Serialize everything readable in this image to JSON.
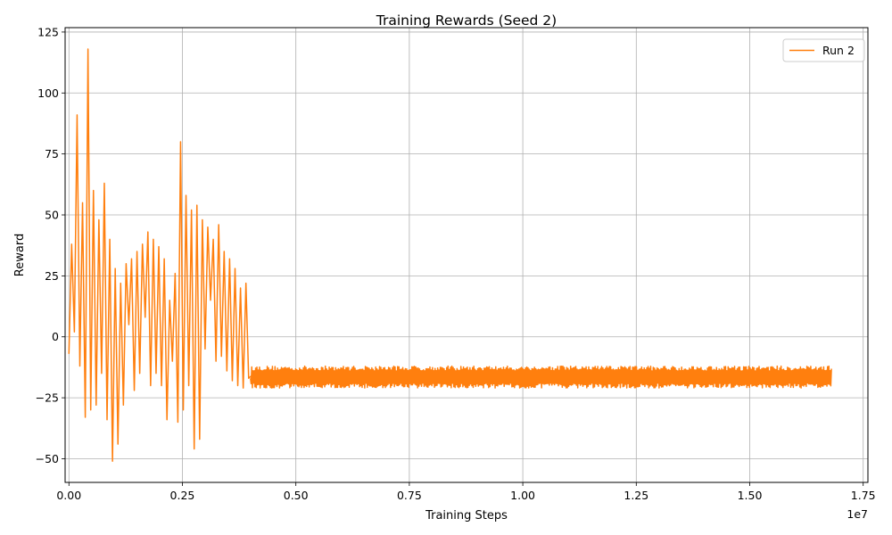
{
  "chart_data": {
    "type": "line",
    "title": "Training Rewards (Seed 2)",
    "xlabel": "Training Steps",
    "ylabel": "Reward",
    "x_offset_label": "1e7",
    "xlim": [
      -0.0084,
      1.7604
    ],
    "ylim": [
      -59.7,
      126.8
    ],
    "x_scale_exponent": 7,
    "x_ticks": [
      0.0,
      0.25,
      0.5,
      0.75,
      1.0,
      1.25,
      1.5,
      1.75
    ],
    "x_tick_labels": [
      "0.00",
      "0.25",
      "0.50",
      "0.75",
      "1.00",
      "1.25",
      "1.50",
      "1.75"
    ],
    "y_ticks": [
      -50,
      -25,
      0,
      25,
      50,
      75,
      100,
      125
    ],
    "y_tick_labels": [
      "−50",
      "−25",
      "0",
      "25",
      "50",
      "75",
      "100",
      "125"
    ],
    "grid": true,
    "legend_position": "upper right",
    "series": [
      {
        "name": "Run 2",
        "color": "#ff7f0e",
        "x_units": "1e7 training steps",
        "x": [
          0.0,
          0.006,
          0.012,
          0.018,
          0.024,
          0.03,
          0.036,
          0.042,
          0.048,
          0.054,
          0.06,
          0.066,
          0.072,
          0.078,
          0.084,
          0.09,
          0.096,
          0.102,
          0.108,
          0.114,
          0.12,
          0.126,
          0.132,
          0.138,
          0.144,
          0.15,
          0.156,
          0.162,
          0.168,
          0.174,
          0.18,
          0.186,
          0.192,
          0.198,
          0.204,
          0.21,
          0.216,
          0.222,
          0.228,
          0.234,
          0.24,
          0.246,
          0.252,
          0.258,
          0.264,
          0.27,
          0.276,
          0.282,
          0.288,
          0.294,
          0.3,
          0.306,
          0.312,
          0.318,
          0.324,
          0.33,
          0.336,
          0.342,
          0.348,
          0.354,
          0.36,
          0.366,
          0.372,
          0.378,
          0.384,
          0.39,
          0.396,
          0.402
        ],
        "y": [
          -7,
          38,
          2,
          91,
          -12,
          55,
          -33,
          118,
          -30,
          60,
          -28,
          48,
          -15,
          63,
          -34,
          40,
          -51,
          28,
          -44,
          22,
          -28,
          30,
          5,
          32,
          -22,
          35,
          -15,
          38,
          8,
          43,
          -20,
          40,
          -15,
          37,
          -20,
          32,
          -34,
          15,
          -10,
          26,
          -35,
          80,
          -30,
          58,
          -20,
          52,
          -46,
          54,
          -42,
          48,
          -5,
          45,
          15,
          40,
          -10,
          46,
          -8,
          35,
          -14,
          32,
          -18,
          28,
          -20,
          20,
          -21,
          22,
          -17,
          -16
        ],
        "noise_band": {
          "x_start": 0.4,
          "x_end": 1.68,
          "center": -17,
          "low": -21,
          "high": -12
        }
      }
    ]
  }
}
